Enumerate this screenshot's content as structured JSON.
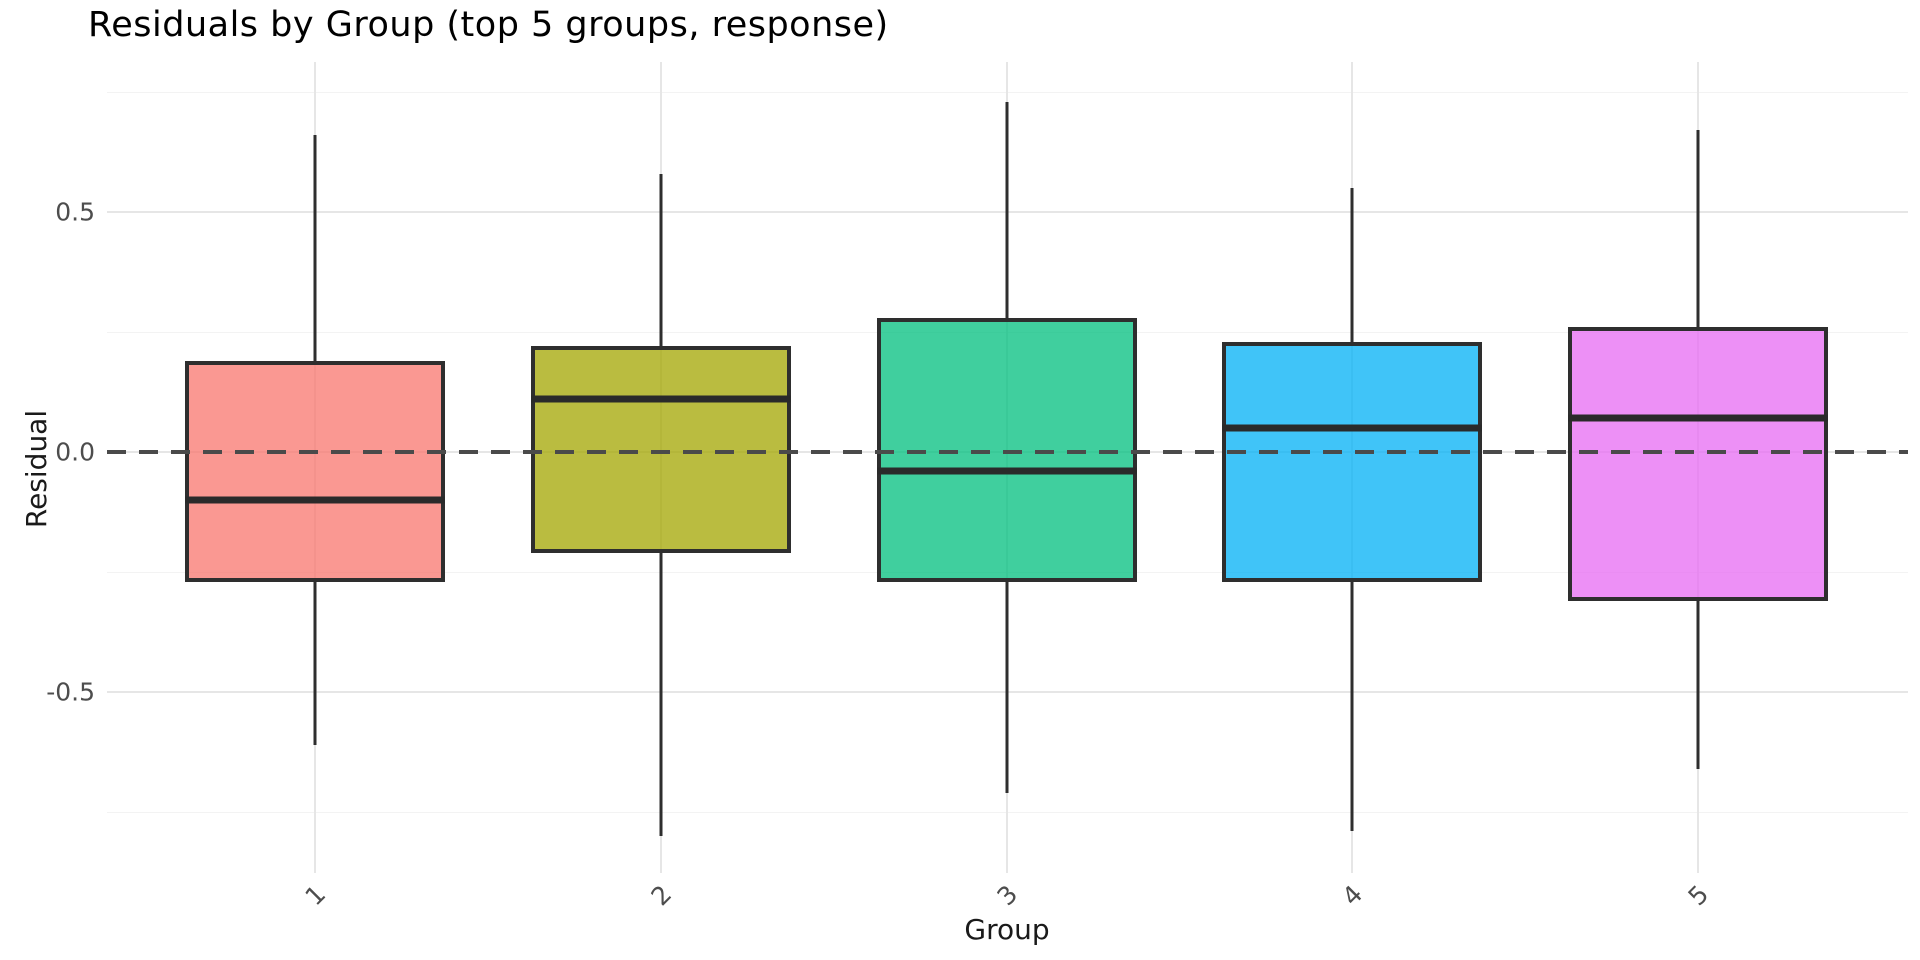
{
  "chart_data": {
    "type": "boxplot",
    "title": "Residuals by Group (top 5 groups, response)",
    "xlabel": "Group",
    "ylabel": "Residual",
    "categories": [
      "1",
      "2",
      "3",
      "4",
      "5"
    ],
    "series": [
      {
        "group": "1",
        "whisker_low": -0.61,
        "q1": -0.27,
        "median": -0.1,
        "q3": 0.19,
        "whisker_high": 0.66,
        "color": "#F8766D"
      },
      {
        "group": "2",
        "whisker_low": -0.8,
        "q1": -0.21,
        "median": 0.11,
        "q3": 0.22,
        "whisker_high": 0.58,
        "color": "#A3A500"
      },
      {
        "group": "3",
        "whisker_low": -0.71,
        "q1": -0.27,
        "median": -0.04,
        "q3": 0.28,
        "whisker_high": 0.73,
        "color": "#00BF7D"
      },
      {
        "group": "4",
        "whisker_low": -0.79,
        "q1": -0.27,
        "median": 0.05,
        "q3": 0.23,
        "whisker_high": 0.55,
        "color": "#00B0F6"
      },
      {
        "group": "5",
        "whisker_low": -0.66,
        "q1": -0.31,
        "median": 0.07,
        "q3": 0.26,
        "whisker_high": 0.67,
        "color": "#E76BF3"
      }
    ],
    "fill_alpha": 0.75,
    "reference_line": {
      "y": 0.0,
      "style": "dashed"
    },
    "ylim": [
      -0.877,
      0.8125
    ],
    "yticks": [
      {
        "value": 0.5,
        "label": "0.5"
      },
      {
        "value": 0.0,
        "label": "0.0"
      },
      {
        "value": -0.5,
        "label": "-0.5"
      }
    ],
    "yticks_minor": [
      0.75,
      0.25,
      -0.25,
      -0.75
    ],
    "grid": "on",
    "legend": "none",
    "colors": {
      "box_stroke": "#2E2E2E",
      "median": "#2A2A2A",
      "zero_line": "#4A4A4A",
      "grid_major": "#E6E6E6",
      "grid_minor": "#F3F3F3",
      "tick_label": "#4D4D4D",
      "title": "#000000",
      "axis_title": "#1A1A1A",
      "background": "#FFFFFF"
    }
  }
}
